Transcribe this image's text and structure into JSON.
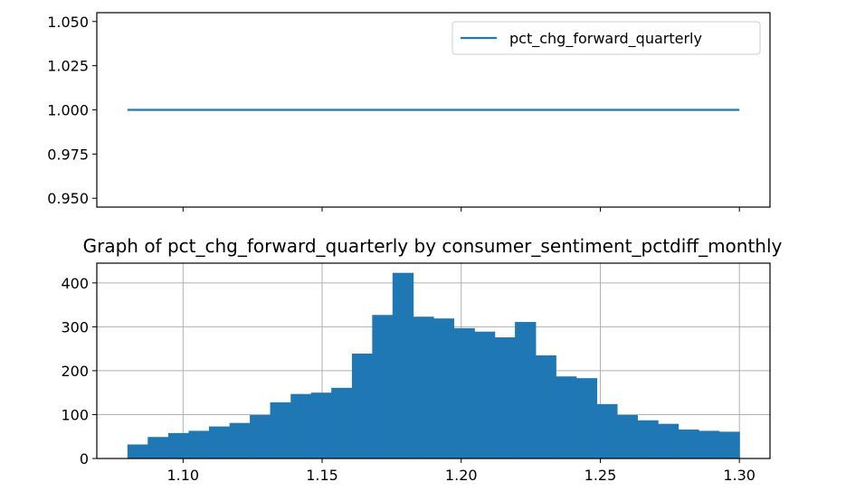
{
  "colors": {
    "series": "#1f77b4",
    "axes": "#000000",
    "grid": "#b0b0b0",
    "legend_border": "#cccccc",
    "background": "#ffffff"
  },
  "chart_data": [
    {
      "type": "line",
      "title": "",
      "xlabel": "",
      "ylabel": "",
      "series": [
        {
          "name": "pct_chg_forward_quarterly",
          "x": [
            1.08,
            1.3
          ],
          "y": [
            1.0,
            1.0
          ]
        }
      ],
      "xlim": [
        1.069,
        1.311
      ],
      "ylim": [
        0.945,
        1.055
      ],
      "y_ticks": [
        0.95,
        0.975,
        1.0,
        1.025,
        1.05
      ],
      "y_tick_labels": [
        "0.950",
        "0.975",
        "1.000",
        "1.025",
        "1.050"
      ],
      "x_ticks": [
        1.1,
        1.15,
        1.2,
        1.25,
        1.3
      ],
      "x_tick_labels_shown": false,
      "grid": false,
      "legend": {
        "placement": "top-right",
        "entries": [
          "pct_chg_forward_quarterly"
        ]
      }
    },
    {
      "type": "bar",
      "title": "Graph of pct_chg_forward_quarterly by consumer_sentiment_pctdiff_monthly",
      "xlabel": "",
      "ylabel": "",
      "histogram": true,
      "bin_edges": [
        1.08,
        1.0873,
        1.0947,
        1.102,
        1.1093,
        1.1167,
        1.124,
        1.1313,
        1.1387,
        1.146,
        1.1533,
        1.1607,
        1.168,
        1.1753,
        1.1827,
        1.19,
        1.1973,
        1.2047,
        1.212,
        1.2193,
        1.2267,
        1.234,
        1.2413,
        1.2487,
        1.256,
        1.2633,
        1.2707,
        1.278,
        1.2853,
        1.2927,
        1.3
      ],
      "values": [
        32,
        49,
        58,
        63,
        73,
        81,
        99,
        128,
        147,
        150,
        161,
        239,
        327,
        423,
        323,
        319,
        297,
        289,
        276,
        311,
        235,
        187,
        183,
        124,
        99,
        87,
        79,
        66,
        63,
        61
      ],
      "xlim": [
        1.069,
        1.311
      ],
      "ylim": [
        0,
        445
      ],
      "x_ticks": [
        1.1,
        1.15,
        1.2,
        1.25,
        1.3
      ],
      "x_tick_labels": [
        "1.10",
        "1.15",
        "1.20",
        "1.25",
        "1.30"
      ],
      "y_ticks": [
        0,
        100,
        200,
        300,
        400
      ],
      "y_tick_labels": [
        "0",
        "100",
        "200",
        "300",
        "400"
      ],
      "grid": true
    }
  ]
}
